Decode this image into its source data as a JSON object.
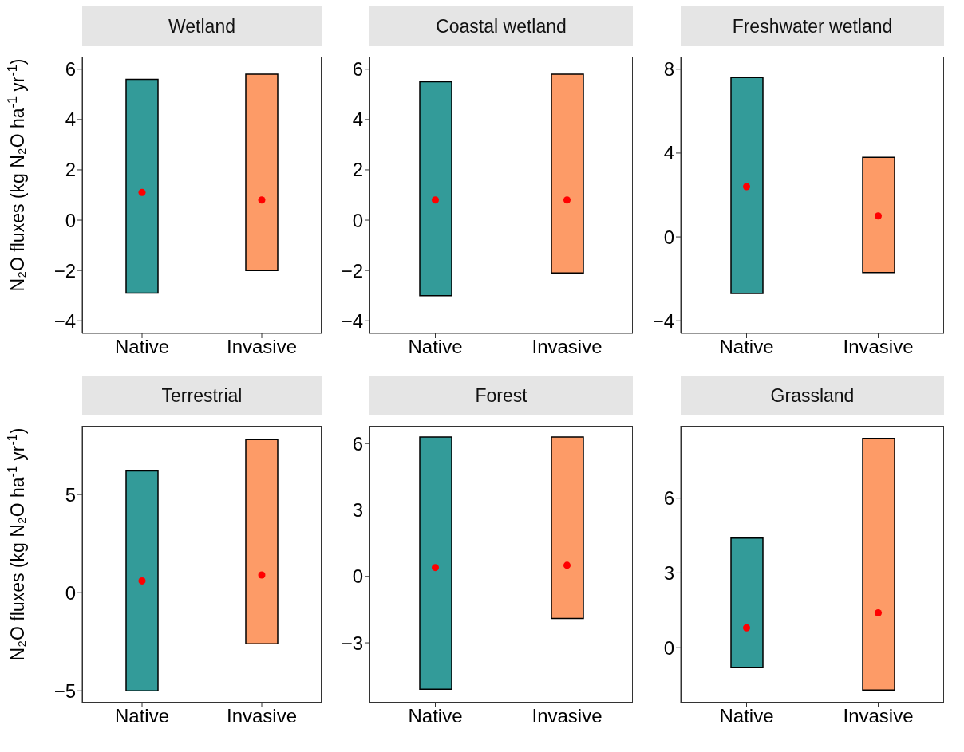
{
  "chart_data": [
    {
      "type": "bar",
      "title": "Wetland",
      "ylabel": "N₂O fluxes (kg N₂O ha$^{-1}$ yr$^{-1}$)",
      "categories": [
        "Native",
        "Invasive"
      ],
      "ylim": [
        -4.5,
        6.5
      ],
      "yticks": [
        -4,
        -2,
        0,
        2,
        4,
        6
      ],
      "marker": "circle",
      "series": [
        {
          "colors": [
            "#339b99",
            "#fd9b67"
          ],
          "base": [
            -2.9,
            -2.0
          ],
          "values": [
            8.5,
            7.8
          ]
        },
        {
          "type": "scatter",
          "color": "#ff0000",
          "x": [
            "Native",
            "Invasive"
          ],
          "values": [
            1.1,
            0.8
          ]
        }
      ]
    },
    {
      "type": "bar",
      "title": "Coastal wetland",
      "categories": [
        "Native",
        "Invasive"
      ],
      "ylim": [
        -4.5,
        6.5
      ],
      "yticks": [
        -4,
        -2,
        0,
        2,
        4,
        6
      ],
      "marker": "circle",
      "series": [
        {
          "colors": [
            "#339b99",
            "#fd9b67"
          ],
          "base": [
            -3.0,
            -2.1
          ],
          "values": [
            8.5,
            7.9
          ]
        },
        {
          "type": "scatter",
          "color": "#ff0000",
          "x": [
            "Native",
            "Invasive"
          ],
          "values": [
            0.8,
            0.8
          ]
        }
      ]
    },
    {
      "type": "bar",
      "title": "Freshwater wetland",
      "categories": [
        "Native",
        "Invasive"
      ],
      "ylim": [
        -4.6,
        8.6
      ],
      "yticks": [
        -4,
        0,
        4,
        8
      ],
      "marker": "circle",
      "series": [
        {
          "colors": [
            "#339b99",
            "#fd9b67"
          ],
          "base": [
            -2.7,
            -1.7
          ],
          "values": [
            10.3,
            5.5
          ]
        },
        {
          "type": "scatter",
          "color": "#ff0000",
          "x": [
            "Native",
            "Invasive"
          ],
          "values": [
            2.4,
            1.0
          ]
        }
      ]
    },
    {
      "type": "bar",
      "title": "Terrestrial",
      "ylabel": "N₂O fluxes (kg N₂O ha$^{-1}$ yr$^{-1}$)",
      "categories": [
        "Native",
        "Invasive"
      ],
      "ylim": [
        -5.6,
        8.5
      ],
      "yticks": [
        -5,
        0,
        5
      ],
      "marker": "circle",
      "series": [
        {
          "colors": [
            "#339b99",
            "#fd9b67"
          ],
          "base": [
            -5.0,
            -2.6
          ],
          "values": [
            11.2,
            10.4
          ]
        },
        {
          "type": "scatter",
          "color": "#ff0000",
          "x": [
            "Native",
            "Invasive"
          ],
          "values": [
            0.6,
            0.9
          ]
        }
      ]
    },
    {
      "type": "bar",
      "title": "Forest",
      "categories": [
        "Native",
        "Invasive"
      ],
      "ylim": [
        -5.7,
        6.8
      ],
      "yticks": [
        -3,
        0,
        3,
        6
      ],
      "marker": "circle",
      "series": [
        {
          "colors": [
            "#339b99",
            "#fd9b67"
          ],
          "base": [
            -5.1,
            -1.9
          ],
          "values": [
            11.4,
            8.2
          ]
        },
        {
          "type": "scatter",
          "color": "#ff0000",
          "x": [
            "Native",
            "Invasive"
          ],
          "values": [
            0.4,
            0.5
          ]
        }
      ]
    },
    {
      "type": "bar",
      "title": "Grassland",
      "categories": [
        "Native",
        "Invasive"
      ],
      "ylim": [
        -2.2,
        8.9
      ],
      "yticks": [
        0,
        3,
        6
      ],
      "marker": "circle",
      "series": [
        {
          "colors": [
            "#339b99",
            "#fd9b67"
          ],
          "base": [
            -0.8,
            -1.7
          ],
          "values": [
            5.2,
            10.1
          ]
        },
        {
          "type": "scatter",
          "color": "#ff0000",
          "x": [
            "Native",
            "Invasive"
          ],
          "values": [
            0.8,
            1.4
          ]
        }
      ]
    }
  ]
}
